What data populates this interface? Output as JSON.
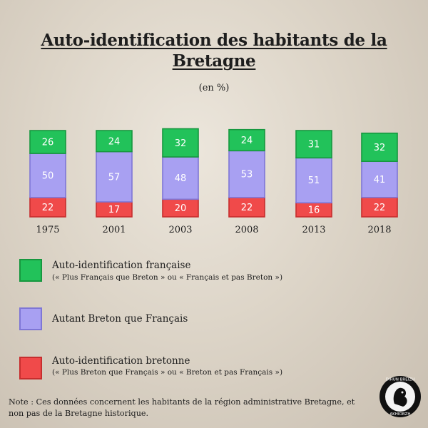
{
  "title": "Auto-identification des habitants de la Bretagne",
  "subtitle": "(en %)",
  "chart_data": {
    "type": "bar",
    "stacked": true,
    "categories": [
      "1975",
      "2001",
      "2003",
      "2008",
      "2013",
      "2018"
    ],
    "series": [
      {
        "name": "Auto-identification bretonne",
        "values": [
          22,
          17,
          20,
          22,
          16,
          22
        ],
        "color": "#f04a4a"
      },
      {
        "name": "Autant Breton que Français",
        "values": [
          50,
          57,
          48,
          53,
          51,
          41
        ],
        "color": "#a8a0f2"
      },
      {
        "name": "Auto-identification française",
        "values": [
          26,
          24,
          32,
          24,
          31,
          32
        ],
        "color": "#22c25a"
      }
    ],
    "title": "Auto-identification des habitants de la Bretagne",
    "subtitle": "(en %)",
    "grid": false,
    "legend": "bottom"
  },
  "legend": [
    {
      "label": "Auto-identification française",
      "sub": "(« Plus Français que Breton » ou « Français et pas Breton »)",
      "color": "#22c25a",
      "border": "#17973f"
    },
    {
      "label": "Autant Breton que Français",
      "sub": "",
      "color": "#a8a0f2",
      "border": "#7e76d6"
    },
    {
      "label": "Auto-identification bretonne",
      "sub": "(« Plus Breton que Français » ou « Breton et pas Français »)",
      "color": "#f04a4a",
      "border": "#c62e2e"
    }
  ],
  "note": "Note : Ces données concernent les habitants de la région administrative Bretagne, et non pas de la Bretagne historique.",
  "logo": {
    "top_text": "DIHUN BREIZH",
    "bottom_text": "AKHIOBZH"
  }
}
